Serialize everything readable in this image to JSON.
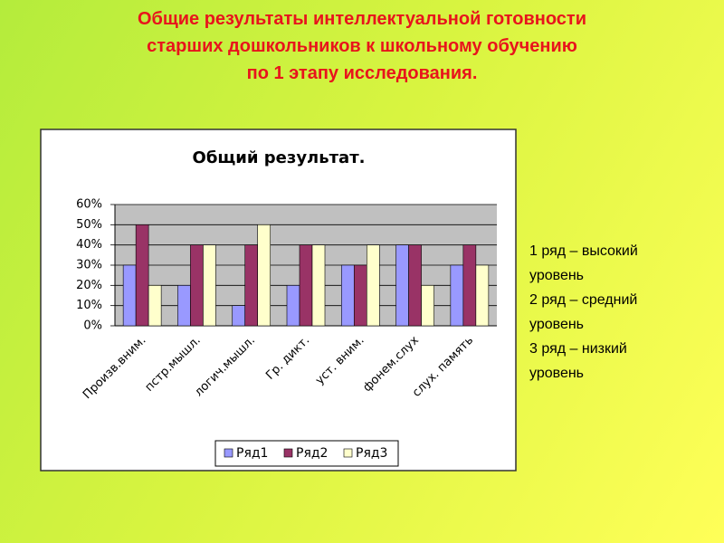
{
  "slide": {
    "title": [
      "Общие  результаты интеллектуальной готовности",
      "старших дошкольников к школьному обучению",
      "по 1 этапу исследования."
    ],
    "notes": [
      "1 ряд – высокий",
      "уровень",
      "2 ряд – средний",
      "уровень",
      "3 ряд – низкий",
      "уровень"
    ]
  },
  "chart_data": {
    "type": "bar",
    "title": "Общий результат.",
    "categories": [
      "Произв.вним.",
      "пстр.мышл.",
      "логич.мышл.",
      "Гр. дикт.",
      "уст. вним.",
      "фонем.слух",
      "слух. память"
    ],
    "series": [
      {
        "name": "Ряд1",
        "color": "#9999ff",
        "values": [
          30,
          20,
          10,
          20,
          30,
          40,
          30
        ]
      },
      {
        "name": "Ряд2",
        "color": "#993366",
        "values": [
          50,
          40,
          40,
          40,
          30,
          40,
          40
        ]
      },
      {
        "name": "Ряд3",
        "color": "#ffffcc",
        "values": [
          20,
          40,
          50,
          40,
          40,
          20,
          30
        ]
      }
    ],
    "ylim": [
      0,
      60
    ],
    "yticks": [
      {
        "value": 0,
        "label": "0%"
      },
      {
        "value": 10,
        "label": "10%"
      },
      {
        "value": 20,
        "label": "20%"
      },
      {
        "value": 30,
        "label": "30%"
      },
      {
        "value": 40,
        "label": "40%"
      },
      {
        "value": 50,
        "label": "50%"
      },
      {
        "value": 60,
        "label": "60%"
      }
    ],
    "grid": true,
    "legend": "bottom"
  }
}
